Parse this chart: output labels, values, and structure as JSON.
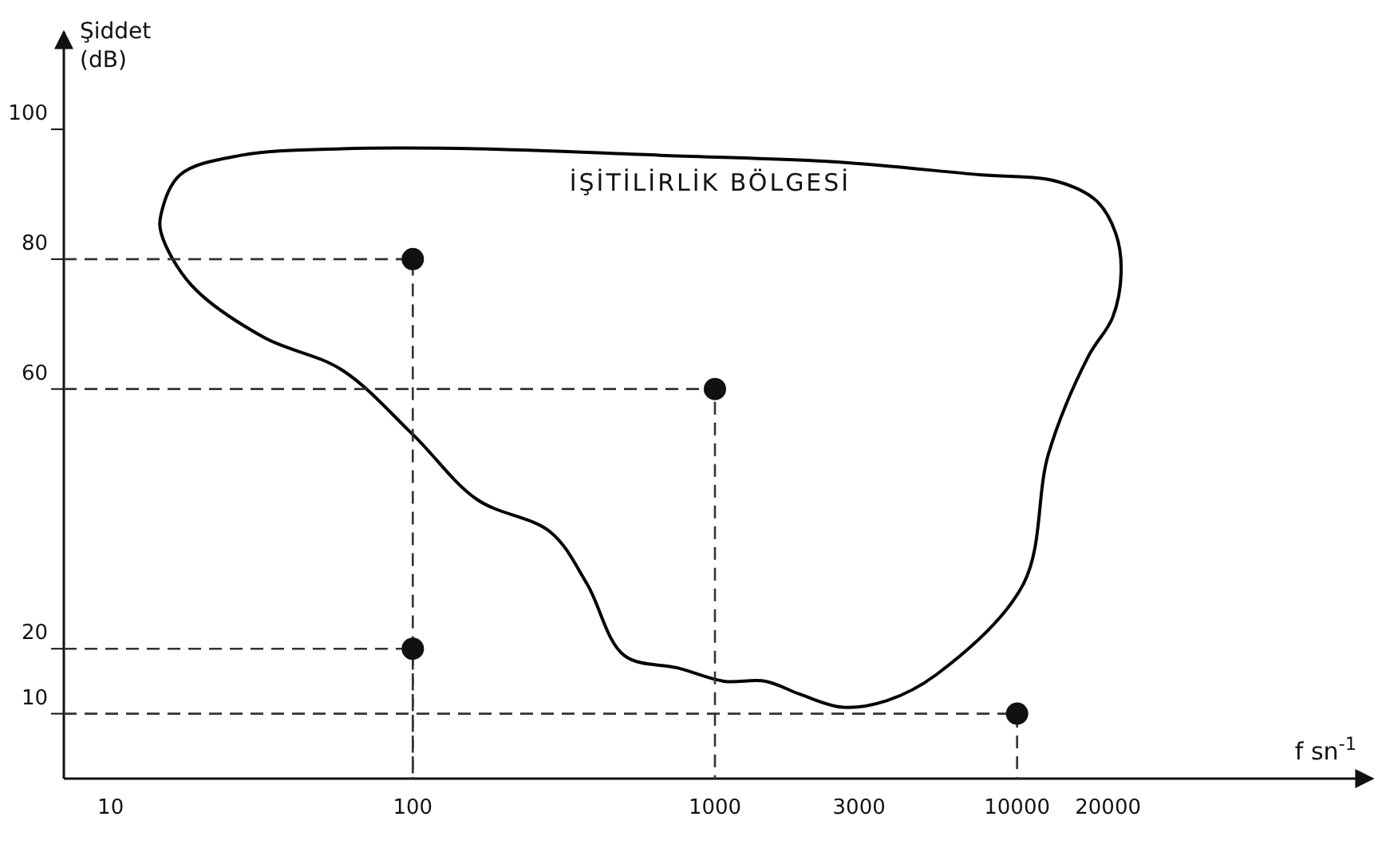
{
  "chart_data": {
    "type": "scatter",
    "ylabel": "Şiddet\n(dB)",
    "xlabel": "f sn$^{-1}$",
    "log": "x",
    "xlim": [
      7,
      150000
    ],
    "xticks": [
      10,
      100,
      1000,
      3000,
      10000,
      20000
    ],
    "ylim": [
      0,
      115
    ],
    "yticks": [
      10,
      20,
      60,
      80,
      100
    ],
    "grid": false,
    "annotations": [
      "İŞİTİLİRLİK BÖLGESİ"
    ],
    "series": [
      {
        "type": "line",
        "color": "#333333",
        "marker": "none",
        "line_style": "dashed",
        "x": [
          7,
          100,
          100
        ],
        "values": [
          80,
          80,
          0
        ]
      },
      {
        "type": "line",
        "color": "#333333",
        "marker": "none",
        "line_style": "dashed",
        "x": [
          7,
          1000,
          1000
        ],
        "values": [
          60,
          60,
          0
        ]
      },
      {
        "type": "line",
        "color": "#333333",
        "marker": "none",
        "line_style": "dashed",
        "x": [
          7,
          100,
          100
        ],
        "values": [
          20,
          20,
          0
        ]
      },
      {
        "type": "line",
        "color": "#333333",
        "marker": "none",
        "line_style": "dashed",
        "x": [
          7,
          10000,
          10000
        ],
        "values": [
          10,
          10,
          0
        ]
      },
      {
        "type": "scatter",
        "color": "#111111",
        "marker": "circle",
        "x": [
          100,
          1000,
          100,
          10000
        ],
        "values": [
          80,
          60,
          20,
          10
        ]
      }
    ]
  }
}
